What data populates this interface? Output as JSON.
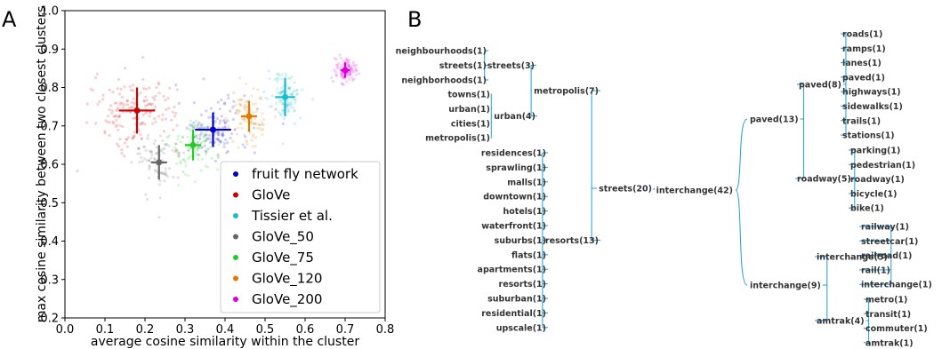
{
  "chart_data": [
    {
      "type": "scatter",
      "panel": "A",
      "xlabel": "average cosine similarity within the cluster",
      "ylabel": "max cosine similarity between two closest clusters",
      "xlim": [
        0.0,
        0.8
      ],
      "ylim": [
        0.2,
        1.0
      ],
      "xticks": [
        "0.0",
        "0.1",
        "0.2",
        "0.3",
        "0.4",
        "0.5",
        "0.6",
        "0.7",
        "0.8"
      ],
      "yticks": [
        "0.2",
        "0.3",
        "0.4",
        "0.5",
        "0.6",
        "0.7",
        "0.8",
        "0.9",
        "1.0"
      ],
      "legend_position": "lower-right",
      "series": [
        {
          "name": "fruit fly network",
          "color": "#0000cc",
          "mean": [
            0.37,
            0.69
          ],
          "err": [
            0.045,
            0.045
          ],
          "cloud_spread": [
            0.045,
            0.04
          ],
          "cloud_count": 120
        },
        {
          "name": "GloVe",
          "color": "#cc0000",
          "mean": [
            0.18,
            0.74
          ],
          "err": [
            0.045,
            0.06
          ],
          "cloud_spread": [
            0.055,
            0.045
          ],
          "cloud_count": 170
        },
        {
          "name": "Tissier et al.",
          "color": "#17becf",
          "mean": [
            0.55,
            0.775
          ],
          "err": [
            0.025,
            0.05
          ],
          "cloud_spread": [
            0.022,
            0.03
          ],
          "cloud_count": 110
        },
        {
          "name": "GloVe_50",
          "color": "#666666",
          "mean": [
            0.235,
            0.605
          ],
          "err": [
            0.02,
            0.045
          ],
          "cloud_spread": [
            0.03,
            0.045
          ],
          "cloud_count": 80
        },
        {
          "name": "GloVe_75",
          "color": "#22cc22",
          "mean": [
            0.32,
            0.65
          ],
          "err": [
            0.02,
            0.04
          ],
          "cloud_spread": [
            0.028,
            0.04
          ],
          "cloud_count": 90
        },
        {
          "name": "GloVe_120",
          "color": "#e07b00",
          "mean": [
            0.46,
            0.725
          ],
          "err": [
            0.02,
            0.04
          ],
          "cloud_spread": [
            0.025,
            0.035
          ],
          "cloud_count": 100
        },
        {
          "name": "GloVe_200",
          "color": "#dd00dd",
          "mean": [
            0.7,
            0.845
          ],
          "err": [
            0.012,
            0.02
          ],
          "cloud_spread": [
            0.014,
            0.018
          ],
          "cloud_count": 90
        }
      ]
    },
    {
      "type": "tree",
      "panel": "B",
      "root": {
        "label": "interchange(42)",
        "children": [
          {
            "label": "streets(20)",
            "children": [
              {
                "label": "metropolis(7)",
                "children": [
                  {
                    "label": "streets(3)",
                    "children": [
                      {
                        "label": "neighbourhoods(1)"
                      },
                      {
                        "label": "streets(1)"
                      },
                      {
                        "label": "neighborhoods(1)"
                      }
                    ]
                  },
                  {
                    "label": "urban(4)",
                    "children": [
                      {
                        "label": "towns(1)"
                      },
                      {
                        "label": "urban(1)"
                      },
                      {
                        "label": "cities(1)"
                      },
                      {
                        "label": "metropolis(1)"
                      }
                    ]
                  }
                ]
              },
              {
                "label": "resorts(13)",
                "children": [
                  {
                    "label": "residences(1)"
                  },
                  {
                    "label": "sprawling(1)"
                  },
                  {
                    "label": "malls(1)"
                  },
                  {
                    "label": "downtown(1)"
                  },
                  {
                    "label": "hotels(1)"
                  },
                  {
                    "label": "waterfront(1)"
                  },
                  {
                    "label": "suburbs(1)"
                  },
                  {
                    "label": "flats(1)"
                  },
                  {
                    "label": "apartments(1)"
                  },
                  {
                    "label": "resorts(1)"
                  },
                  {
                    "label": "suburban(1)"
                  },
                  {
                    "label": "residential(1)"
                  },
                  {
                    "label": "upscale(1)"
                  }
                ]
              }
            ]
          },
          {
            "label": "paved(13)",
            "children": [
              {
                "label": "paved(8)",
                "children": [
                  {
                    "label": "roads(1)"
                  },
                  {
                    "label": "ramps(1)"
                  },
                  {
                    "label": "lanes(1)"
                  },
                  {
                    "label": "paved(1)"
                  },
                  {
                    "label": "highways(1)"
                  },
                  {
                    "label": "sidewalks(1)"
                  },
                  {
                    "label": "trails(1)"
                  },
                  {
                    "label": "stations(1)"
                  }
                ]
              },
              {
                "label": "roadway(5)",
                "children": [
                  {
                    "label": "parking(1)"
                  },
                  {
                    "label": "pedestrian(1)"
                  },
                  {
                    "label": "roadway(1)"
                  },
                  {
                    "label": "bicycle(1)"
                  },
                  {
                    "label": "bike(1)"
                  }
                ]
              }
            ]
          },
          {
            "label": "interchange(9)",
            "children": [
              {
                "label": "interchange(5)",
                "children": [
                  {
                    "label": "railway(1)"
                  },
                  {
                    "label": "streetcar(1)"
                  },
                  {
                    "label": "railroad(1)"
                  },
                  {
                    "label": "rail(1)"
                  },
                  {
                    "label": "interchange(1)"
                  }
                ]
              },
              {
                "label": "amtrak(4)",
                "children": [
                  {
                    "label": "metro(1)"
                  },
                  {
                    "label": "transit(1)"
                  },
                  {
                    "label": "commuter(1)"
                  },
                  {
                    "label": "amtrak(1)"
                  }
                ]
              }
            ]
          }
        ]
      }
    }
  ],
  "line_color": "#1f9fd6"
}
